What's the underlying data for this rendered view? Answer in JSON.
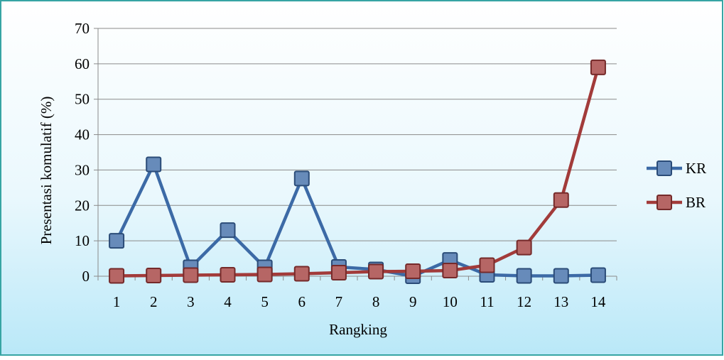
{
  "chart_data": {
    "type": "line",
    "title": "",
    "xlabel": "Rangking",
    "ylabel": "Presentasi komulatif (%)",
    "categories": [
      "1",
      "2",
      "3",
      "4",
      "5",
      "6",
      "7",
      "8",
      "9",
      "10",
      "11",
      "12",
      "13",
      "14"
    ],
    "ylim": [
      0,
      70
    ],
    "yticks": [
      "0",
      "10",
      "20",
      "30",
      "40",
      "50",
      "60",
      "70"
    ],
    "grid": true,
    "legend_position": "right",
    "series": [
      {
        "name": "KR",
        "color": "#3c6aa6",
        "values": [
          10,
          31.6,
          2.5,
          13,
          2.5,
          27.6,
          2.6,
          1.9,
          0,
          4.6,
          0.4,
          0.1,
          0.1,
          0.3
        ]
      },
      {
        "name": "BR",
        "color": "#a23b3a",
        "values": [
          0.1,
          0.2,
          0.3,
          0.4,
          0.5,
          0.7,
          1.0,
          1.3,
          1.4,
          1.6,
          3.1,
          8.1,
          21.5,
          59
        ]
      }
    ]
  }
}
